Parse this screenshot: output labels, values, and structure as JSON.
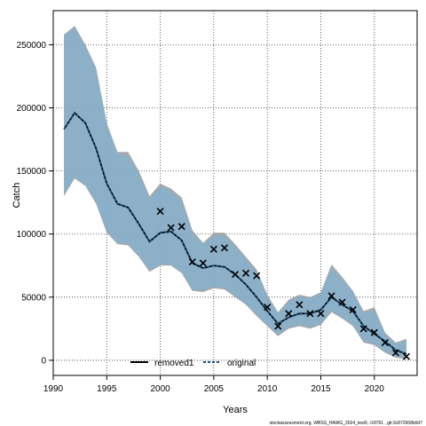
{
  "chart_data": {
    "type": "line",
    "title": "",
    "xlabel": "Years",
    "ylabel": "Catch",
    "xlim": [
      1990,
      2024
    ],
    "ylim": [
      -12000,
      277000
    ],
    "xticks": [
      1990,
      1995,
      2000,
      2005,
      2010,
      2015,
      2020
    ],
    "yticks": [
      0,
      50000,
      100000,
      150000,
      200000,
      250000
    ],
    "ytick_labels": [
      "0",
      "50000",
      "100000",
      "150000",
      "200000",
      "250000"
    ],
    "grid": true,
    "legend_position": "bottom-center",
    "years": [
      1991,
      1992,
      1993,
      1994,
      1995,
      1996,
      1997,
      1998,
      1999,
      2000,
      2001,
      2002,
      2003,
      2004,
      2005,
      2006,
      2007,
      2008,
      2009,
      2010,
      2011,
      2012,
      2013,
      2014,
      2015,
      2016,
      2017,
      2018,
      2019,
      2020,
      2021,
      2022,
      2023
    ],
    "series": [
      {
        "name": "removed1",
        "color": "#000000",
        "style": "solid",
        "values": [
          183000,
          196000,
          188000,
          168000,
          140000,
          124000,
          121000,
          108000,
          94000,
          101000,
          102000,
          95000,
          77000,
          73000,
          75000,
          74000,
          68000,
          60000,
          50000,
          39000,
          29000,
          34000,
          37000,
          37000,
          40000,
          50000,
          44000,
          39000,
          27000,
          21000,
          15000,
          8000,
          5000
        ],
        "band_upper": [
          258000,
          265000,
          250000,
          232000,
          188000,
          165000,
          165000,
          150000,
          130000,
          140000,
          136000,
          129000,
          103000,
          93000,
          101000,
          101000,
          92000,
          82000,
          72000,
          52000,
          38000,
          48000,
          52000,
          50000,
          54000,
          76000,
          66000,
          55000,
          39000,
          42000,
          22000,
          14000,
          17000
        ],
        "band_lower": [
          130000,
          144000,
          138000,
          124000,
          101000,
          92000,
          91000,
          82000,
          70000,
          75000,
          75000,
          69000,
          55000,
          54000,
          57000,
          56000,
          50000,
          44000,
          35000,
          27000,
          19000,
          25000,
          27000,
          25000,
          28000,
          38000,
          33000,
          27000,
          14000,
          12000,
          6000,
          2000,
          1000
        ]
      },
      {
        "name": "original",
        "color": "#1f4e79",
        "style": "dashed",
        "values": [
          183000,
          196000,
          188000,
          168000,
          140000,
          124000,
          121000,
          108000,
          94000,
          101000,
          102000,
          95000,
          77000,
          73000,
          75000,
          74000,
          68000,
          60000,
          50000,
          39000,
          29000,
          34000,
          37000,
          37000,
          40000,
          50000,
          44000,
          39000,
          27000,
          21000,
          15000,
          8000,
          5000
        ],
        "band_upper": [
          257000,
          264000,
          249000,
          231000,
          187000,
          164000,
          162000,
          148000,
          128000,
          138000,
          134000,
          127000,
          101000,
          92000,
          99000,
          99000,
          90000,
          80000,
          70000,
          51000,
          37000,
          47000,
          51000,
          49000,
          53000,
          74000,
          64000,
          54000,
          38000,
          40000,
          21000,
          13000,
          16000
        ],
        "band_lower": [
          131000,
          145000,
          139000,
          125000,
          102000,
          93000,
          92000,
          83000,
          71000,
          76000,
          76000,
          70000,
          56000,
          55000,
          58000,
          57000,
          51000,
          45000,
          36000,
          28000,
          20000,
          26000,
          28000,
          26000,
          29000,
          39000,
          34000,
          28000,
          15000,
          13000,
          7000,
          3000,
          2000
        ]
      }
    ],
    "observed": {
      "marker": "x",
      "points": [
        {
          "x": 2000,
          "y": 118000
        },
        {
          "x": 2001,
          "y": 105000
        },
        {
          "x": 2002,
          "y": 106000
        },
        {
          "x": 2003,
          "y": 78000
        },
        {
          "x": 2004,
          "y": 77000
        },
        {
          "x": 2005,
          "y": 88000
        },
        {
          "x": 2006,
          "y": 89000
        },
        {
          "x": 2007,
          "y": 68000
        },
        {
          "x": 2008,
          "y": 69000
        },
        {
          "x": 2009,
          "y": 67000
        },
        {
          "x": 2010,
          "y": 42000
        },
        {
          "x": 2011,
          "y": 27000
        },
        {
          "x": 2012,
          "y": 37000
        },
        {
          "x": 2013,
          "y": 44000
        },
        {
          "x": 2014,
          "y": 37000
        },
        {
          "x": 2015,
          "y": 37000
        },
        {
          "x": 2016,
          "y": 51000
        },
        {
          "x": 2017,
          "y": 46000
        },
        {
          "x": 2018,
          "y": 40000
        },
        {
          "x": 2019,
          "y": 25000
        },
        {
          "x": 2020,
          "y": 22000
        },
        {
          "x": 2021,
          "y": 14000
        },
        {
          "x": 2022,
          "y": 6000
        },
        {
          "x": 2023,
          "y": 3000
        }
      ]
    },
    "colors": {
      "band_removed1": "#8c8c8c",
      "band_original": "#7fb3d5",
      "band_overlap": "#a3c3d3"
    }
  },
  "footer_text": "stockassessment.org, WBSS_HAWG_2024_test0, r18761 , git:3c872568b0d7"
}
